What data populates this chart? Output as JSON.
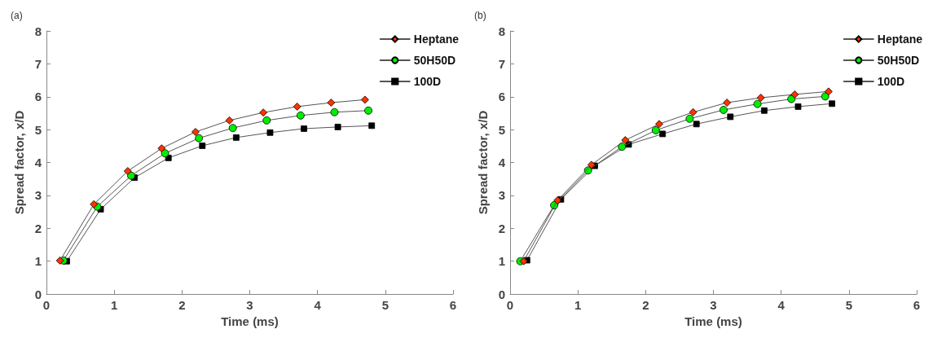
{
  "chart_data": [
    {
      "type": "line",
      "title": "(a)",
      "xlabel": "Time (ms)",
      "ylabel": "Spread factor, x/D",
      "xlim": [
        0,
        6
      ],
      "xticks": [
        0,
        1,
        2,
        3,
        4,
        5,
        6
      ],
      "ylim": [
        0,
        8
      ],
      "yticks": [
        0,
        1,
        2,
        3,
        4,
        5,
        6,
        7,
        8
      ],
      "grid": false,
      "legend": "top right",
      "line_style": "solid",
      "series": [
        {
          "name": "Heptane",
          "color": "#ff3300",
          "marker": "diamond",
          "x": [
            0.2,
            0.7,
            1.2,
            1.7,
            2.2,
            2.7,
            3.2,
            3.7,
            4.2,
            4.7
          ],
          "values": [
            1.02,
            2.73,
            3.74,
            4.43,
            4.93,
            5.28,
            5.52,
            5.7,
            5.82,
            5.91
          ]
        },
        {
          "name": "50H50D",
          "color": "#00ee00",
          "marker": "circle",
          "x": [
            0.25,
            0.75,
            1.25,
            1.75,
            2.25,
            2.75,
            3.25,
            3.75,
            4.25,
            4.75
          ],
          "values": [
            1.02,
            2.66,
            3.6,
            4.28,
            4.74,
            5.05,
            5.28,
            5.43,
            5.53,
            5.58
          ]
        },
        {
          "name": "100D",
          "color": "#000000",
          "marker": "square",
          "x": [
            0.3,
            0.8,
            1.3,
            1.8,
            2.3,
            2.8,
            3.3,
            3.8,
            4.3,
            4.8
          ],
          "values": [
            1.0,
            2.58,
            3.54,
            4.14,
            4.51,
            4.76,
            4.91,
            5.03,
            5.08,
            5.12
          ]
        }
      ]
    },
    {
      "type": "line",
      "title": "(b)",
      "xlabel": "Time (ms)",
      "ylabel": "Spread factor, x/D",
      "xlim": [
        0,
        6
      ],
      "xticks": [
        0,
        1,
        2,
        3,
        4,
        5,
        6
      ],
      "ylim": [
        0,
        8
      ],
      "yticks": [
        0,
        1,
        2,
        3,
        4,
        5,
        6,
        7,
        8
      ],
      "grid": false,
      "legend": "top right",
      "line_style": "solid",
      "series": [
        {
          "name": "Heptane",
          "color": "#ff3300",
          "marker": "diamond",
          "x": [
            0.2,
            0.7,
            1.2,
            1.7,
            2.2,
            2.7,
            3.2,
            3.7,
            4.2,
            4.7
          ],
          "values": [
            1.0,
            2.85,
            3.93,
            4.68,
            5.17,
            5.53,
            5.82,
            5.97,
            6.07,
            6.16
          ]
        },
        {
          "name": "50H50D",
          "color": "#00ee00",
          "marker": "circle",
          "x": [
            0.15,
            0.65,
            1.15,
            1.65,
            2.15,
            2.65,
            3.15,
            3.65,
            4.15,
            4.65
          ],
          "values": [
            1.0,
            2.7,
            3.76,
            4.48,
            4.98,
            5.33,
            5.6,
            5.78,
            5.93,
            6.01
          ]
        },
        {
          "name": "100D",
          "color": "#000000",
          "marker": "square",
          "x": [
            0.25,
            0.75,
            1.25,
            1.75,
            2.25,
            2.75,
            3.25,
            3.75,
            4.25,
            4.75
          ],
          "values": [
            1.03,
            2.88,
            3.9,
            4.55,
            4.87,
            5.17,
            5.39,
            5.58,
            5.7,
            5.79
          ]
        }
      ]
    }
  ]
}
